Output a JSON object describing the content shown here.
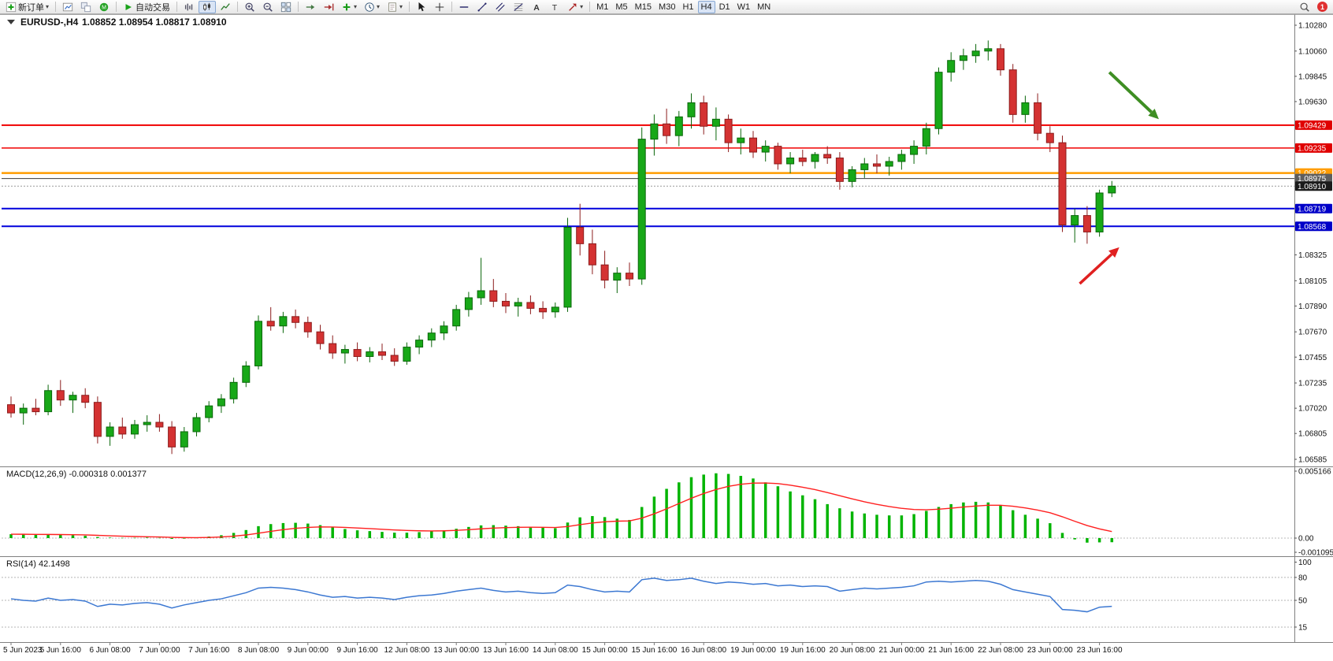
{
  "toolbar": {
    "groups": [
      {
        "items": [
          {
            "name": "new-order-button",
            "icon": "new-order-icon",
            "label": "新订单",
            "caret": true
          }
        ]
      },
      {
        "items": [
          {
            "name": "charts-button",
            "icon": "charts-icon"
          },
          {
            "name": "profiles-button",
            "icon": "profiles-icon"
          },
          {
            "name": "community-button",
            "icon": "community-icon"
          }
        ]
      },
      {
        "items": [
          {
            "name": "autotrading-button",
            "icon": "autotrading-icon",
            "label": "自动交易"
          }
        ]
      },
      {
        "items": [
          {
            "name": "bar-chart-button",
            "icon": "bar-chart-icon"
          },
          {
            "name": "candlestick-button",
            "icon": "candles-icon",
            "active": true
          },
          {
            "name": "line-chart-button",
            "icon": "line-chart-icon"
          }
        ]
      },
      {
        "items": [
          {
            "name": "zoom-in-button",
            "icon": "zoom-in-icon"
          },
          {
            "name": "zoom-out-button",
            "icon": "zoom-out-icon"
          },
          {
            "name": "tile-windows-button",
            "icon": "tile-windows-icon"
          }
        ]
      },
      {
        "items": [
          {
            "name": "auto-scroll-button",
            "icon": "auto-scroll-icon"
          },
          {
            "name": "chart-shift-button",
            "icon": "chart-shift-icon"
          },
          {
            "name": "indicators-button",
            "icon": "indicators-icon",
            "caret": true
          },
          {
            "name": "periods-button",
            "icon": "periods-icon",
            "caret": true
          },
          {
            "name": "templates-button",
            "icon": "templates-icon",
            "caret": true
          }
        ]
      },
      {
        "items": [
          {
            "name": "cursor-button",
            "icon": "cursor-icon"
          },
          {
            "name": "crosshair-button",
            "icon": "crosshair-icon"
          }
        ]
      },
      {
        "items": [
          {
            "name": "horizontal-line-button",
            "icon": "hline-icon"
          },
          {
            "name": "trendline-button",
            "icon": "trendline-icon"
          },
          {
            "name": "channel-button",
            "icon": "channel-icon"
          },
          {
            "name": "fibonacci-button",
            "icon": "fibonacci-icon"
          },
          {
            "name": "text-button",
            "icon": "text-icon"
          },
          {
            "name": "label-button",
            "icon": "label-icon"
          },
          {
            "name": "arrows-button",
            "icon": "arrows-icon",
            "caret": true
          }
        ]
      },
      {
        "items": [
          {
            "name": "tf-m1-button",
            "label": "M1"
          },
          {
            "name": "tf-m5-button",
            "label": "M5"
          },
          {
            "name": "tf-m15-button",
            "label": "M15"
          },
          {
            "name": "tf-m30-button",
            "label": "M30"
          },
          {
            "name": "tf-h1-button",
            "label": "H1"
          },
          {
            "name": "tf-h4-button",
            "label": "H4",
            "active": true
          },
          {
            "name": "tf-d1-button",
            "label": "D1"
          },
          {
            "name": "tf-w1-button",
            "label": "W1"
          },
          {
            "name": "tf-mn-button",
            "label": "MN"
          }
        ]
      }
    ],
    "right_items": [
      {
        "name": "search-button",
        "icon": "search-icon"
      },
      {
        "name": "notification-badge",
        "badge": "1"
      }
    ]
  },
  "chart": {
    "header": {
      "symbol": "EURUSD-,H4",
      "ohlc": "1.08852 1.08954 1.08817 1.08910"
    },
    "indicators_header": {
      "macd": "MACD(12,26,9) -0.000318 0.001377",
      "rsi": "RSI(14) 42.1498"
    }
  },
  "chart_data": {
    "type": "candlestick",
    "symbol": "EURUSD-",
    "timeframe": "H4",
    "current": {
      "open": 1.08852,
      "high": 1.08954,
      "low": 1.08817,
      "close": 1.0891,
      "bid": 1.0891
    },
    "price_axis": {
      "max": 1.1028,
      "min": 1.06585,
      "visible_ticks": [
        "1.10280",
        "1.10060",
        "1.09845",
        "1.09630",
        "1.08325",
        "1.08105",
        "1.07890",
        "1.07670",
        "1.07455",
        "1.07235",
        "1.07020",
        "1.06805",
        "1.06585"
      ]
    },
    "hlines": [
      {
        "price": 1.09429,
        "color": "#f00000",
        "width": 2,
        "label": "1.09429",
        "label_bg": "#e00000"
      },
      {
        "price": 1.09235,
        "color": "#f00000",
        "width": 1.5,
        "label": "1.09235",
        "label_bg": "#e00000"
      },
      {
        "price": 1.09022,
        "color": "#ff9c00",
        "width": 2.5,
        "label": "1.09022",
        "label_bg": "#ff9c00"
      },
      {
        "price": 1.08975,
        "color": "#3a3a3a",
        "width": 1,
        "label": "1.08975",
        "label_bg": "#5e5e5e"
      },
      {
        "price": 1.08719,
        "color": "#0000dc",
        "width": 2,
        "label": "1.08719",
        "label_bg": "#0000c8"
      },
      {
        "price": 1.08568,
        "color": "#0000dc",
        "width": 2,
        "label": "1.08568",
        "label_bg": "#0000c8"
      }
    ],
    "bid_line": {
      "price": 1.0891,
      "label": "1.08910",
      "label_bg": "#1b1b1b",
      "line_color": "#999999"
    },
    "time_axis": {
      "candles_per_label": 4,
      "labels": [
        "5 Jun 2023",
        "5 Jun 16:00",
        "6 Jun 08:00",
        "7 Jun 00:00",
        "7 Jun 16:00",
        "8 Jun 08:00",
        "9 Jun 00:00",
        "9 Jun 16:00",
        "12 Jun 08:00",
        "13 Jun 00:00",
        "13 Jun 16:00",
        "14 Jun 08:00",
        "15 Jun 00:00",
        "15 Jun 16:00",
        "16 Jun 08:00",
        "19 Jun 00:00",
        "19 Jun 16:00",
        "20 Jun 08:00",
        "21 Jun 00:00",
        "21 Jun 16:00",
        "22 Jun 08:00",
        "23 Jun 00:00",
        "23 Jun 16:00"
      ]
    },
    "ohlc": [
      [
        1.0705,
        1.0712,
        1.0694,
        1.0698
      ],
      [
        1.0698,
        1.0706,
        1.0688,
        1.0702
      ],
      [
        1.0702,
        1.071,
        1.0696,
        1.0699
      ],
      [
        1.0699,
        1.0722,
        1.0696,
        1.0717
      ],
      [
        1.0717,
        1.0726,
        1.0704,
        1.0709
      ],
      [
        1.0709,
        1.0716,
        1.0698,
        1.0713
      ],
      [
        1.0713,
        1.0719,
        1.0702,
        1.0707
      ],
      [
        1.0707,
        1.0712,
        1.0672,
        1.0678
      ],
      [
        1.0678,
        1.069,
        1.067,
        1.0686
      ],
      [
        1.0686,
        1.0694,
        1.0676,
        1.068
      ],
      [
        1.068,
        1.0692,
        1.0676,
        1.0688
      ],
      [
        1.0688,
        1.0696,
        1.0682,
        1.069
      ],
      [
        1.069,
        1.0697,
        1.0682,
        1.0686
      ],
      [
        1.0686,
        1.0691,
        1.0663,
        1.0669
      ],
      [
        1.0669,
        1.0686,
        1.0665,
        1.0682
      ],
      [
        1.0682,
        1.0698,
        1.0678,
        1.0694
      ],
      [
        1.0694,
        1.0708,
        1.069,
        1.0704
      ],
      [
        1.0704,
        1.0714,
        1.0698,
        1.071
      ],
      [
        1.071,
        1.0728,
        1.0706,
        1.0724
      ],
      [
        1.0724,
        1.0742,
        1.072,
        1.0738
      ],
      [
        1.0738,
        1.0781,
        1.0735,
        1.0776
      ],
      [
        1.0776,
        1.0788,
        1.0768,
        1.0772
      ],
      [
        1.0772,
        1.0784,
        1.0766,
        1.078
      ],
      [
        1.078,
        1.0786,
        1.077,
        1.0775
      ],
      [
        1.0775,
        1.078,
        1.0762,
        1.0767
      ],
      [
        1.0767,
        1.0773,
        1.0752,
        1.0757
      ],
      [
        1.0757,
        1.0764,
        1.0744,
        1.0749
      ],
      [
        1.0749,
        1.0756,
        1.074,
        1.0752
      ],
      [
        1.0752,
        1.0758,
        1.0742,
        1.0746
      ],
      [
        1.0746,
        1.0754,
        1.0741,
        1.075
      ],
      [
        1.075,
        1.0757,
        1.0743,
        1.0747
      ],
      [
        1.0747,
        1.0753,
        1.0738,
        1.0742
      ],
      [
        1.0742,
        1.0758,
        1.0739,
        1.0754
      ],
      [
        1.0754,
        1.0764,
        1.0748,
        1.076
      ],
      [
        1.076,
        1.077,
        1.0754,
        1.0766
      ],
      [
        1.0766,
        1.0776,
        1.076,
        1.0772
      ],
      [
        1.0772,
        1.079,
        1.0768,
        1.0786
      ],
      [
        1.0786,
        1.0801,
        1.078,
        1.0796
      ],
      [
        1.0796,
        1.083,
        1.079,
        1.0802
      ],
      [
        1.0802,
        1.0812,
        1.0788,
        1.0793
      ],
      [
        1.0793,
        1.08,
        1.0783,
        1.0789
      ],
      [
        1.0789,
        1.0796,
        1.078,
        1.0792
      ],
      [
        1.0792,
        1.0798,
        1.0782,
        1.0787
      ],
      [
        1.0787,
        1.0793,
        1.0778,
        1.0784
      ],
      [
        1.0784,
        1.0792,
        1.0779,
        1.0788
      ],
      [
        1.0788,
        1.0864,
        1.0784,
        1.0856
      ],
      [
        1.0856,
        1.0876,
        1.0832,
        1.0842
      ],
      [
        1.0842,
        1.0854,
        1.0816,
        1.0824
      ],
      [
        1.0824,
        1.0836,
        1.0804,
        1.0811
      ],
      [
        1.0811,
        1.0822,
        1.08,
        1.0817
      ],
      [
        1.0817,
        1.0826,
        1.0806,
        1.0812
      ],
      [
        1.0812,
        1.0941,
        1.0807,
        1.0931
      ],
      [
        1.0931,
        1.0952,
        1.0917,
        1.0944
      ],
      [
        1.0944,
        1.0957,
        1.0927,
        1.0934
      ],
      [
        1.0934,
        1.0955,
        1.0925,
        1.095
      ],
      [
        1.095,
        1.097,
        1.094,
        1.0962
      ],
      [
        1.0962,
        1.0968,
        1.0935,
        1.0942
      ],
      [
        1.0942,
        1.0958,
        1.093,
        1.0948
      ],
      [
        1.0948,
        1.0952,
        1.092,
        1.0928
      ],
      [
        1.0928,
        1.094,
        1.0918,
        1.0932
      ],
      [
        1.0932,
        1.0938,
        1.0915,
        1.092
      ],
      [
        1.092,
        1.093,
        1.0912,
        1.0925
      ],
      [
        1.0925,
        1.0928,
        1.0905,
        1.091
      ],
      [
        1.091,
        1.092,
        1.0902,
        1.0915
      ],
      [
        1.0915,
        1.0922,
        1.0908,
        1.0912
      ],
      [
        1.0912,
        1.092,
        1.0906,
        1.0918
      ],
      [
        1.0918,
        1.0925,
        1.091,
        1.0915
      ],
      [
        1.0915,
        1.092,
        1.0888,
        1.0895
      ],
      [
        1.0895,
        1.0908,
        1.089,
        1.0905
      ],
      [
        1.0905,
        1.0915,
        1.0898,
        1.091
      ],
      [
        1.091,
        1.0918,
        1.0902,
        1.0908
      ],
      [
        1.0908,
        1.0916,
        1.09,
        1.0912
      ],
      [
        1.0912,
        1.0922,
        1.0905,
        1.0918
      ],
      [
        1.0918,
        1.093,
        1.091,
        1.0925
      ],
      [
        1.0925,
        1.0945,
        1.0918,
        1.094
      ],
      [
        1.094,
        1.0992,
        1.0935,
        1.0988
      ],
      [
        1.0988,
        1.1005,
        1.098,
        1.0998
      ],
      [
        1.0998,
        1.1008,
        1.099,
        1.1002
      ],
      [
        1.1002,
        1.1012,
        1.0996,
        1.1006
      ],
      [
        1.1006,
        1.1015,
        1.0998,
        1.1008
      ],
      [
        1.1008,
        1.1012,
        1.0985,
        1.099
      ],
      [
        1.099,
        1.0995,
        1.0945,
        1.0952
      ],
      [
        1.0952,
        1.0968,
        1.0945,
        1.0962
      ],
      [
        1.0962,
        1.097,
        1.093,
        1.0936
      ],
      [
        1.0936,
        1.0942,
        1.092,
        1.0928
      ],
      [
        1.0928,
        1.0934,
        1.0852,
        1.0858
      ],
      [
        1.0858,
        1.0872,
        1.0843,
        1.0866
      ],
      [
        1.0866,
        1.0874,
        1.0842,
        1.0852
      ],
      [
        1.0852,
        1.0888,
        1.0848,
        1.08852
      ],
      [
        1.08852,
        1.08954,
        1.08817,
        1.0891
      ]
    ],
    "indicators": {
      "macd": {
        "name": "MACD(12,26,9)",
        "value": -0.000318,
        "signal_value": 0.001377,
        "signal_period": 9,
        "axis_ticks": [
          "0.005166",
          "0.00",
          "-0.001095"
        ],
        "histogram": [
          0.0003,
          0.00028,
          0.00025,
          0.00026,
          0.00024,
          0.00022,
          0.00018,
          8e-05,
          4e-05,
          2e-05,
          2e-05,
          4e-05,
          2e-05,
          -6e-05,
          -4e-05,
          2e-05,
          0.00012,
          0.00022,
          0.0004,
          0.00062,
          0.00092,
          0.00108,
          0.00116,
          0.00118,
          0.00112,
          0.001,
          0.00084,
          0.0007,
          0.0006,
          0.00054,
          0.00048,
          0.00042,
          0.00042,
          0.00046,
          0.00052,
          0.0006,
          0.00072,
          0.00086,
          0.00098,
          0.001,
          0.00096,
          0.00092,
          0.00086,
          0.0008,
          0.00076,
          0.0012,
          0.0016,
          0.0017,
          0.00162,
          0.0015,
          0.0014,
          0.0024,
          0.0032,
          0.0038,
          0.0043,
          0.0047,
          0.0049,
          0.005,
          0.00495,
          0.0048,
          0.0046,
          0.0043,
          0.004,
          0.0036,
          0.0033,
          0.003,
          0.00262,
          0.0023,
          0.00205,
          0.0019,
          0.0018,
          0.00175,
          0.00175,
          0.00185,
          0.0021,
          0.0024,
          0.00262,
          0.00275,
          0.0028,
          0.00275,
          0.00255,
          0.00215,
          0.0018,
          0.0015,
          0.00115,
          0.0004,
          -0.0001,
          -0.00035,
          -0.00033,
          -0.000318
        ]
      },
      "rsi": {
        "name": "RSI(14)",
        "value": 42.1498,
        "period": 14,
        "levels": [
          80,
          50,
          15
        ],
        "axis_ticks": [
          "100",
          "80",
          "50",
          "15"
        ],
        "values": [
          52,
          50,
          49,
          53,
          50,
          51,
          49,
          42,
          45,
          44,
          46,
          47,
          45,
          40,
          44,
          47,
          50,
          52,
          56,
          60,
          66,
          67,
          66,
          64,
          61,
          57,
          54,
          55,
          53,
          54,
          53,
          51,
          54,
          56,
          57,
          59,
          62,
          64,
          66,
          63,
          61,
          62,
          60,
          59,
          60,
          70,
          68,
          64,
          61,
          62,
          61,
          77,
          79,
          76,
          77,
          79,
          75,
          72,
          74,
          73,
          71,
          72,
          69,
          70,
          68,
          69,
          68,
          62,
          64,
          66,
          65,
          66,
          67,
          69,
          74,
          75,
          74,
          75,
          76,
          75,
          71,
          64,
          61,
          58,
          55,
          38,
          37,
          35,
          41,
          42.15
        ]
      }
    },
    "annotations": [
      {
        "type": "arrow",
        "direction": "down-right",
        "color": "#3e8e23",
        "width": 4,
        "from": {
          "bar": 88.8,
          "price": 1.0988
        },
        "to": {
          "bar": 92.8,
          "price": 1.0948
        }
      },
      {
        "type": "arrow",
        "direction": "up-right",
        "color": "#e02020",
        "width": 3.5,
        "from": {
          "bar": 86.4,
          "price": 1.0808
        },
        "to": {
          "bar": 89.6,
          "price": 1.0839
        }
      }
    ],
    "style": {
      "bull_color": "#18a818",
      "bull_stroke": "#0a660a",
      "bear_color": "#d43232",
      "bear_stroke": "#8c1d1d",
      "macd_histogram_color": "#00b400",
      "macd_signal_color": "#ff2020",
      "rsi_color": "#3c78d2",
      "grid_line_color": "#808080"
    }
  }
}
